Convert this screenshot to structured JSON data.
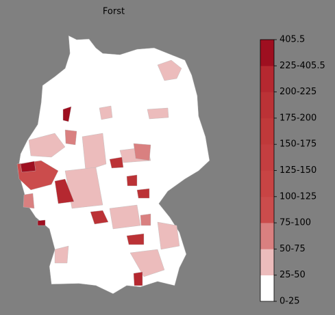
{
  "title": "Forst",
  "colorbar": {
    "labels": [
      "0-25",
      "25-50",
      "50-75",
      "75-100",
      "100-125",
      "125-150",
      "150-175",
      "175-200",
      "200-225",
      "225-405.5",
      405.5
    ],
    "colors": [
      "#ffffff",
      "#ecbcbc",
      "#d98080",
      "#cb4c4c",
      "#c84444",
      "#c43e40",
      "#c0393a",
      "#bb3236",
      "#b52830",
      "#9e0f20"
    ]
  }
}
